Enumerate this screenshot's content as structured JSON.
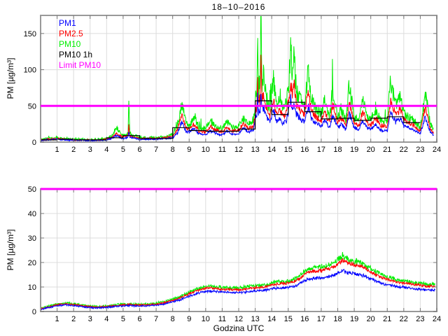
{
  "chart_data": [
    {
      "type": "line",
      "name": "pm-timeseries-raw",
      "title": "18–10–2016",
      "ylabel": "PM [µg/m³]",
      "xlabel": "",
      "xlim": [
        0,
        24
      ],
      "ylim": [
        0,
        175
      ],
      "xticks": [
        1,
        2,
        3,
        4,
        5,
        6,
        7,
        8,
        9,
        10,
        11,
        12,
        13,
        14,
        15,
        16,
        17,
        18,
        19,
        20,
        21,
        22,
        23,
        24
      ],
      "yticks": [
        0,
        50,
        100,
        150
      ],
      "grid": true,
      "legend": [
        {
          "label": "PM1",
          "color": "#0000ff"
        },
        {
          "label": "PM2.5",
          "color": "#ff0000"
        },
        {
          "label": "PM10",
          "color": "#00ee00"
        },
        {
          "label": "PM10 1h",
          "color": "#000000"
        },
        {
          "label": "Limit PM10",
          "color": "#ff00ff"
        }
      ],
      "x": [
        0,
        0.5,
        1,
        1.5,
        2,
        2.5,
        3,
        3.5,
        4,
        4.3,
        4.6,
        4.8,
        5,
        5.2,
        5.3,
        5.35,
        5.4,
        5.5,
        6,
        6.5,
        7,
        7.5,
        8,
        8.3,
        8.55,
        8.8,
        9,
        9.3,
        9.6,
        10,
        10.3,
        10.6,
        11,
        11.3,
        11.6,
        12,
        12.3,
        12.6,
        12.9,
        13.05,
        13.1,
        13.15,
        13.2,
        13.25,
        13.3,
        13.35,
        13.4,
        13.5,
        13.7,
        13.9,
        14.1,
        14.3,
        14.5,
        14.7,
        14.9,
        15.05,
        15.15,
        15.25,
        15.35,
        15.5,
        15.7,
        16,
        16.2,
        16.4,
        16.7,
        17,
        17.2,
        17.5,
        17.7,
        18,
        18.2,
        18.5,
        18.7,
        19,
        19.3,
        19.5,
        19.8,
        20,
        20.3,
        20.6,
        21,
        21.2,
        21.5,
        21.8,
        22,
        22.3,
        22.6,
        23,
        23.3,
        23.6,
        23.8
      ],
      "series": [
        {
          "name": "PM1",
          "color": "#0000ff",
          "type": "noisy-line",
          "noise": {
            "rel": 0.12,
            "abs": 0.9
          },
          "values": [
            2.5,
            3,
            4,
            3,
            2.5,
            2.5,
            2,
            2.5,
            3,
            5,
            9,
            7,
            5,
            6,
            7,
            15,
            7,
            6,
            4,
            4,
            4,
            5,
            6,
            13,
            28,
            15,
            13,
            19,
            11,
            10,
            16,
            12,
            10,
            15,
            11,
            12,
            19,
            14,
            16,
            38,
            33,
            65,
            38,
            45,
            40,
            75,
            45,
            48,
            33,
            26,
            45,
            28,
            33,
            25,
            31,
            45,
            60,
            48,
            55,
            38,
            33,
            28,
            50,
            33,
            25,
            22,
            30,
            20,
            38,
            20,
            25,
            17,
            40,
            20,
            17,
            30,
            19,
            17,
            24,
            17,
            15,
            42,
            28,
            33,
            22,
            20,
            17,
            11,
            35,
            14,
            10
          ]
        },
        {
          "name": "PM2.5",
          "color": "#ff0000",
          "type": "noisy-line",
          "noise": {
            "rel": 0.12,
            "abs": 1.0
          },
          "values": [
            3,
            4,
            5,
            4,
            3,
            3,
            2.5,
            3,
            4,
            6,
            12,
            9,
            7,
            8,
            9,
            25,
            9,
            8,
            5,
            5,
            5,
            6,
            8,
            18,
            38,
            20,
            17,
            25,
            15,
            14,
            22,
            17,
            14,
            20,
            15,
            17,
            25,
            19,
            22,
            50,
            45,
            95,
            50,
            60,
            55,
            130,
            60,
            65,
            45,
            35,
            60,
            38,
            45,
            34,
            42,
            60,
            85,
            65,
            80,
            52,
            45,
            38,
            70,
            45,
            34,
            30,
            40,
            27,
            52,
            27,
            34,
            23,
            55,
            27,
            23,
            42,
            26,
            23,
            33,
            23,
            21,
            58,
            38,
            45,
            30,
            27,
            23,
            15,
            48,
            19,
            13
          ]
        },
        {
          "name": "PM10",
          "color": "#00ee00",
          "type": "noisy-line",
          "noise": {
            "rel": 0.18,
            "abs": 1.3,
            "spike_p": 0.02,
            "spike_m": 0.7
          },
          "values": [
            4,
            5,
            6,
            5,
            4,
            4,
            3,
            4,
            5,
            8,
            20,
            14,
            9,
            10,
            12,
            58,
            12,
            10,
            7,
            6,
            6,
            7,
            10,
            24,
            55,
            28,
            22,
            34,
            20,
            18,
            30,
            22,
            18,
            28,
            20,
            22,
            34,
            25,
            30,
            70,
            60,
            175,
            70,
            80,
            75,
            175,
            80,
            95,
            60,
            45,
            88,
            50,
            60,
            45,
            55,
            80,
            140,
            90,
            120,
            70,
            60,
            50,
            100,
            60,
            45,
            40,
            55,
            35,
            75,
            35,
            45,
            30,
            80,
            35,
            30,
            60,
            35,
            30,
            45,
            30,
            28,
            85,
            50,
            60,
            40,
            35,
            30,
            20,
            70,
            25,
            18
          ]
        },
        {
          "name": "PM10 1h",
          "color": "#000000",
          "type": "step",
          "x_start": 0,
          "values": [
            3,
            4,
            3,
            3,
            6,
            9,
            5,
            5,
            20,
            16,
            15,
            15,
            18,
            57,
            38,
            55,
            42,
            32,
            33,
            30,
            33,
            35,
            27
          ]
        },
        {
          "name": "Limit PM10",
          "color": "#ff00ff",
          "type": "hline",
          "value": 50,
          "width": 3
        }
      ]
    },
    {
      "type": "line",
      "name": "pm-timeseries-smoothed",
      "title": "",
      "ylabel": "PM [µg/m³]",
      "xlabel": "Godzina UTC",
      "xlim": [
        0,
        24
      ],
      "ylim": [
        0,
        50
      ],
      "xticks": [
        1,
        2,
        3,
        4,
        5,
        6,
        7,
        8,
        9,
        10,
        11,
        12,
        13,
        14,
        15,
        16,
        17,
        18,
        19,
        20,
        21,
        22,
        23,
        24
      ],
      "yticks": [
        0,
        10,
        20,
        30,
        40,
        50
      ],
      "grid": true,
      "x": [
        0,
        0.5,
        1,
        1.5,
        2,
        2.5,
        3,
        3.5,
        4,
        4.5,
        5,
        5.5,
        6,
        6.5,
        7,
        7.5,
        8,
        8.5,
        9,
        9.5,
        10,
        10.5,
        11,
        11.5,
        12,
        12.5,
        13,
        13.5,
        14,
        14.5,
        15,
        15.5,
        16,
        16.5,
        17,
        17.5,
        18,
        18.3,
        18.6,
        19,
        19.5,
        20,
        20.5,
        21,
        21.5,
        22,
        22.5,
        23,
        23.5,
        23.9
      ],
      "series": [
        {
          "name": "PM1",
          "color": "#0000ff",
          "type": "noisy-line",
          "noise": {
            "rel": 0.04,
            "abs": 0.3
          },
          "values": [
            0.8,
            1.6,
            2.3,
            2.7,
            2.4,
            2,
            1.6,
            1.5,
            1.7,
            2,
            2.3,
            2.4,
            2.2,
            2.3,
            2.6,
            3.1,
            4,
            4.9,
            6.2,
            7.5,
            8.2,
            8.3,
            7.9,
            7.7,
            7.8,
            8,
            8.4,
            8.5,
            9.4,
            9.6,
            9.8,
            10.6,
            12.6,
            13.5,
            13.8,
            14.3,
            15.6,
            16.5,
            15.8,
            15.3,
            14.8,
            13.3,
            11.9,
            11,
            10.3,
            9.8,
            9.4,
            9.1,
            8.7,
            8.8
          ]
        },
        {
          "name": "PM2.5",
          "color": "#ff0000",
          "type": "noisy-line",
          "noise": {
            "rel": 0.04,
            "abs": 0.3
          },
          "values": [
            1,
            1.9,
            2.7,
            3.1,
            2.8,
            2.4,
            1.9,
            1.8,
            2,
            2.4,
            2.7,
            2.8,
            2.6,
            2.7,
            3,
            3.6,
            4.6,
            5.7,
            7.2,
            8.7,
            9.5,
            9.6,
            9.1,
            8.9,
            9,
            9.3,
            9.7,
            9.9,
            11,
            11.3,
            11.5,
            12.6,
            15.2,
            16.4,
            16.8,
            17.5,
            19.3,
            21,
            19.8,
            19,
            18.3,
            16.2,
            14.3,
            13.1,
            12.2,
            11.6,
            11.1,
            10.7,
            10.2,
            10.3
          ]
        },
        {
          "name": "PM10",
          "color": "#00ee00",
          "type": "noisy-line",
          "noise": {
            "rel": 0.05,
            "abs": 0.5
          },
          "values": [
            1.2,
            2.2,
            3,
            3.4,
            3.1,
            2.6,
            2.1,
            2,
            2.2,
            2.6,
            3,
            3.1,
            2.9,
            3,
            3.3,
            4,
            5,
            6.2,
            7.8,
            9.4,
            10.2,
            10.3,
            9.8,
            9.6,
            9.7,
            10,
            10.4,
            10.6,
            11.8,
            12.1,
            12.3,
            13.5,
            16.5,
            17.8,
            18.2,
            19,
            21,
            23,
            21.5,
            20.5,
            19.8,
            17.5,
            15.5,
            14.2,
            13.2,
            12.6,
            12.1,
            11.6,
            11.1,
            11.2
          ]
        },
        {
          "name": "Limit PM10",
          "color": "#ff00ff",
          "type": "hline",
          "value": 50,
          "width": 3
        }
      ]
    }
  ],
  "style_colors": {
    "frame": "#999999",
    "grid": "#dcdcdc",
    "ticks": "#777777"
  }
}
